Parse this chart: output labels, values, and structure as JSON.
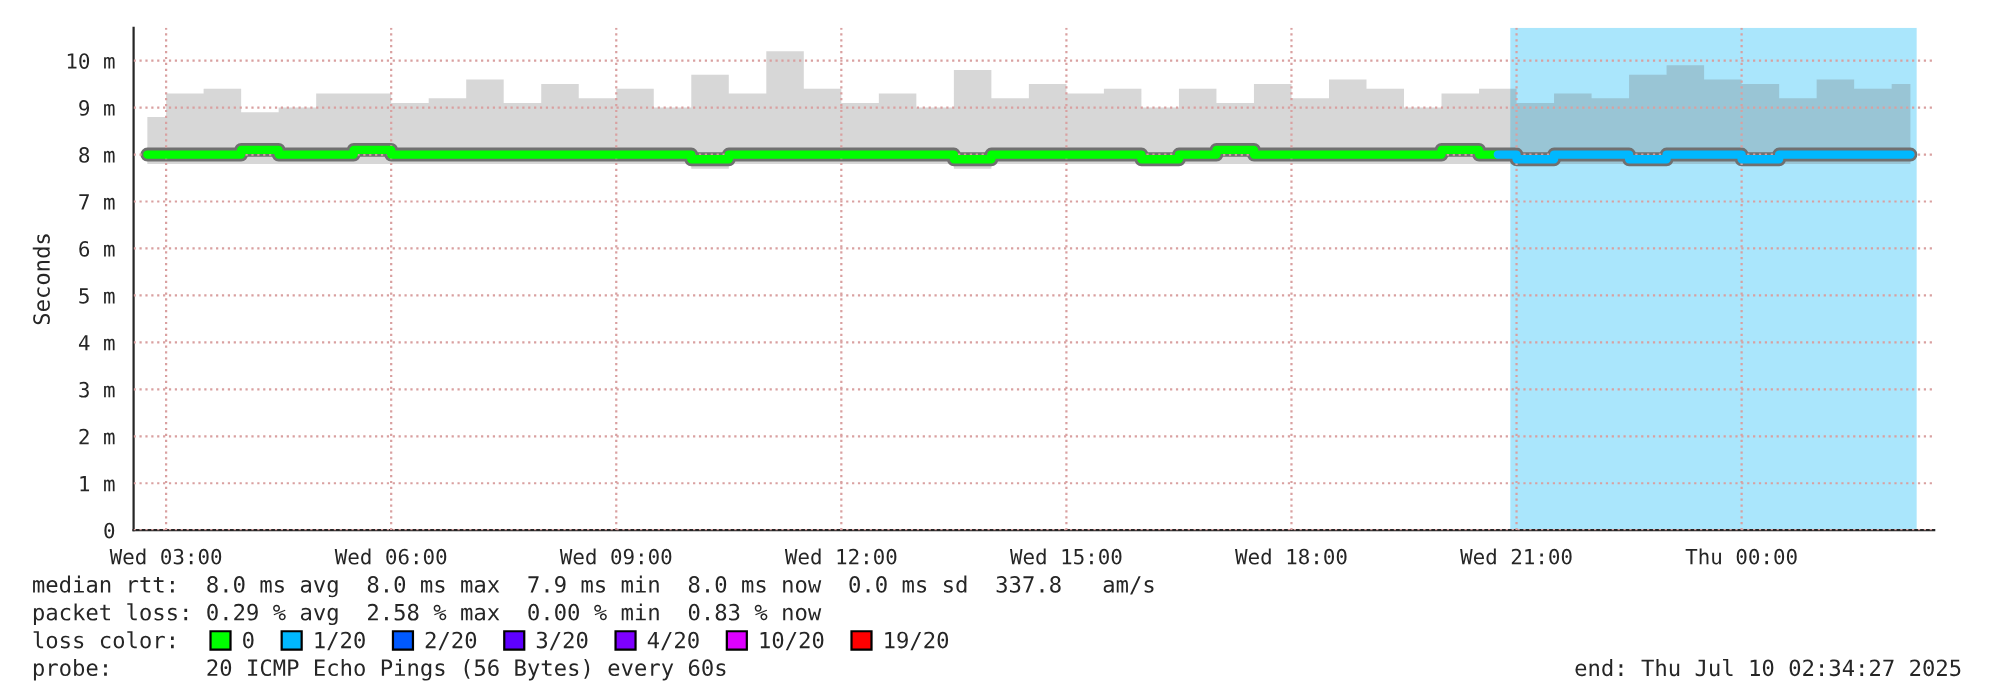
{
  "chart_data": {
    "type": "line",
    "ylabel": "Seconds",
    "legend_title": "loss color:",
    "x": [
      "2025-07-09T02:45",
      "2025-07-09T03:15",
      "2025-07-09T03:45",
      "2025-07-09T04:15",
      "2025-07-09T04:45",
      "2025-07-09T05:15",
      "2025-07-09T05:45",
      "2025-07-09T06:15",
      "2025-07-09T06:45",
      "2025-07-09T07:15",
      "2025-07-09T07:45",
      "2025-07-09T08:15",
      "2025-07-09T08:45",
      "2025-07-09T09:15",
      "2025-07-09T09:45",
      "2025-07-09T10:15",
      "2025-07-09T10:45",
      "2025-07-09T11:15",
      "2025-07-09T11:45",
      "2025-07-09T12:15",
      "2025-07-09T12:45",
      "2025-07-09T13:15",
      "2025-07-09T13:45",
      "2025-07-09T14:15",
      "2025-07-09T14:45",
      "2025-07-09T15:15",
      "2025-07-09T15:45",
      "2025-07-09T16:15",
      "2025-07-09T16:45",
      "2025-07-09T17:15",
      "2025-07-09T17:45",
      "2025-07-09T18:15",
      "2025-07-09T18:45",
      "2025-07-09T19:15",
      "2025-07-09T19:45",
      "2025-07-09T20:15",
      "2025-07-09T20:45",
      "2025-07-09T21:15",
      "2025-07-09T21:45",
      "2025-07-09T22:15",
      "2025-07-09T22:45",
      "2025-07-09T23:15",
      "2025-07-09T23:45",
      "2025-07-10T00:15",
      "2025-07-10T00:45",
      "2025-07-10T01:15",
      "2025-07-10T01:45",
      "2025-07-10T02:15"
    ],
    "series": [
      {
        "color": "#707070",
        "values": [
          8.0,
          8.0,
          8.0,
          8.1,
          8.0,
          8.0,
          8.1,
          8.0,
          8.0,
          8.0,
          8.0,
          8.0,
          8.0,
          8.0,
          8.0,
          7.9,
          8.0,
          8.0,
          8.0,
          8.0,
          8.0,
          8.0,
          7.9,
          8.0,
          8.0,
          8.0,
          8.0,
          7.9,
          8.0,
          8.1,
          8.0,
          8.0,
          8.0,
          8.0,
          8.0,
          8.1,
          8.0,
          7.9,
          8.0,
          8.0,
          7.9,
          8.0,
          8.0,
          7.9,
          8.0,
          8.0,
          8.0,
          8.0
        ],
        "lower": [
          7.8,
          7.8,
          7.8,
          7.8,
          7.8,
          7.8,
          7.8,
          7.8,
          7.8,
          7.8,
          7.8,
          7.8,
          7.8,
          7.8,
          7.8,
          7.7,
          7.8,
          7.8,
          7.8,
          7.8,
          7.8,
          7.8,
          7.7,
          7.8,
          7.8,
          7.8,
          7.8,
          7.8,
          7.8,
          7.8,
          7.8,
          7.8,
          7.8,
          7.8,
          7.8,
          7.8,
          7.8,
          7.8,
          7.8,
          7.8,
          7.8,
          7.8,
          7.8,
          7.8,
          7.8,
          7.8,
          7.8,
          7.8
        ],
        "upper": [
          8.8,
          9.3,
          9.4,
          8.9,
          9.0,
          9.3,
          9.3,
          9.1,
          9.2,
          9.6,
          9.1,
          9.5,
          9.2,
          9.4,
          9.0,
          9.7,
          9.3,
          10.2,
          9.4,
          9.1,
          9.3,
          9.0,
          9.8,
          9.2,
          9.5,
          9.3,
          9.4,
          9.0,
          9.4,
          9.1,
          9.5,
          9.2,
          9.6,
          9.4,
          9.0,
          9.3,
          9.4,
          9.1,
          9.3,
          9.2,
          9.7,
          9.9,
          9.6,
          9.5,
          9.2,
          9.6,
          9.4,
          9.5
        ]
      },
      {
        "name": "0",
        "color": "#00ff00",
        "values": [
          8.0,
          8.0,
          8.0,
          8.1,
          8.0,
          8.0,
          8.1,
          8.0,
          8.0,
          8.0,
          8.0,
          8.0,
          8.0,
          8.0,
          8.0,
          7.9,
          8.0,
          8.0,
          8.0,
          8.0,
          8.0,
          8.0,
          7.9,
          8.0,
          8.0,
          8.0,
          8.0,
          7.9,
          8.0,
          8.1,
          8.0,
          8.0,
          8.0,
          8.0,
          8.0,
          8.1,
          8.0,
          null,
          null,
          null,
          null,
          null,
          null,
          null,
          null,
          null,
          null,
          null
        ]
      },
      {
        "name": "1/20",
        "color": "#00b8ff",
        "values": [
          null,
          null,
          null,
          null,
          null,
          null,
          null,
          null,
          null,
          null,
          null,
          null,
          null,
          null,
          null,
          null,
          null,
          null,
          null,
          null,
          null,
          null,
          null,
          null,
          null,
          null,
          null,
          null,
          null,
          null,
          null,
          null,
          null,
          null,
          null,
          null,
          8.0,
          7.9,
          8.0,
          8.0,
          7.9,
          8.0,
          8.0,
          7.9,
          8.0,
          8.0,
          8.0,
          8.0
        ]
      },
      {
        "name": "2/20",
        "color": "#0059ff",
        "values": [
          null,
          null,
          null,
          null,
          null,
          null,
          null,
          null,
          null,
          null,
          null,
          null,
          null,
          null,
          null,
          null,
          null,
          null,
          null,
          null,
          null,
          null,
          null,
          null,
          null,
          null,
          null,
          null,
          null,
          null,
          null,
          null,
          null,
          null,
          null,
          null,
          null,
          null,
          null,
          null,
          null,
          null,
          null,
          null,
          null,
          null,
          null,
          null
        ]
      },
      {
        "name": "3/20",
        "color": "#5e00ff",
        "values": [
          null,
          null,
          null,
          null,
          null,
          null,
          null,
          null,
          null,
          null,
          null,
          null,
          null,
          null,
          null,
          null,
          null,
          null,
          null,
          null,
          null,
          null,
          null,
          null,
          null,
          null,
          null,
          null,
          null,
          null,
          null,
          null,
          null,
          null,
          null,
          null,
          null,
          null,
          null,
          null,
          null,
          null,
          null,
          null,
          null,
          null,
          null,
          null
        ]
      },
      {
        "name": "4/20",
        "color": "#7e00ff",
        "values": [
          null,
          null,
          null,
          null,
          null,
          null,
          null,
          null,
          null,
          null,
          null,
          null,
          null,
          null,
          null,
          null,
          null,
          null,
          null,
          null,
          null,
          null,
          null,
          null,
          null,
          null,
          null,
          null,
          null,
          null,
          null,
          null,
          null,
          null,
          null,
          null,
          null,
          null,
          null,
          null,
          null,
          null,
          null,
          null,
          null,
          null,
          null,
          null
        ]
      },
      {
        "name": "10/20",
        "color": "#dd00ff",
        "values": [
          null,
          null,
          null,
          null,
          null,
          null,
          null,
          null,
          null,
          null,
          null,
          null,
          null,
          null,
          null,
          null,
          null,
          null,
          null,
          null,
          null,
          null,
          null,
          null,
          null,
          null,
          null,
          null,
          null,
          null,
          null,
          null,
          null,
          null,
          null,
          null,
          null,
          null,
          null,
          null,
          null,
          null,
          null,
          null,
          null,
          null,
          null,
          null
        ]
      },
      {
        "name": "19/20",
        "color": "#ff0000",
        "values": [
          null,
          null,
          null,
          null,
          null,
          null,
          null,
          null,
          null,
          null,
          null,
          null,
          null,
          null,
          null,
          null,
          null,
          null,
          null,
          null,
          null,
          null,
          null,
          null,
          null,
          null,
          null,
          null,
          null,
          null,
          null,
          null,
          null,
          null,
          null,
          null,
          null,
          null,
          null,
          null,
          null,
          null,
          null,
          null,
          null,
          null,
          null,
          null
        ]
      }
    ],
    "bands": [
      {
        "axis": "x",
        "from": "2025-07-09T20:55",
        "to": "2025-07-10T02:20",
        "color": "#aae6fc"
      }
    ],
    "xlim": [
      "2025-07-09T02:34",
      "2025-07-10T02:34"
    ],
    "xticks": [
      {
        "value": "2025-07-09T03:00",
        "label": "Wed 03:00"
      },
      {
        "value": "2025-07-09T06:00",
        "label": "Wed 06:00"
      },
      {
        "value": "2025-07-09T09:00",
        "label": "Wed 09:00"
      },
      {
        "value": "2025-07-09T12:00",
        "label": "Wed 12:00"
      },
      {
        "value": "2025-07-09T15:00",
        "label": "Wed 15:00"
      },
      {
        "value": "2025-07-09T18:00",
        "label": "Wed 18:00"
      },
      {
        "value": "2025-07-09T21:00",
        "label": "Wed 21:00"
      },
      {
        "value": "2025-07-10T00:00",
        "label": "Thu 00:00"
      }
    ],
    "ylim": [
      0,
      10.7
    ],
    "yticks": [
      0,
      {
        "value": 1,
        "label": "1 m"
      },
      {
        "value": 2,
        "label": "2 m"
      },
      {
        "value": 3,
        "label": "3 m"
      },
      {
        "value": 4,
        "label": "4 m"
      },
      {
        "value": 5,
        "label": "5 m"
      },
      {
        "value": 6,
        "label": "6 m"
      },
      {
        "value": 7,
        "label": "7 m"
      },
      {
        "value": 8,
        "label": "8 m"
      },
      {
        "value": 9,
        "label": "9 m"
      },
      {
        "value": 10,
        "label": "10 m"
      }
    ],
    "grid": true,
    "legend": "bottom",
    "marker": "none",
    "line_style": "solid",
    "annotations": [
      "median rtt:  8.0 ms avg  8.0 ms max  7.9 ms min  8.0 ms now  0.0 ms sd  337.8   am/s",
      "packet loss: 0.29 % avg  2.58 % max  0.00 % min  0.83 % now",
      "probe:       20 ICMP Echo Pings (56 Bytes) every 60s",
      "end: Thu Jul 10 02:34:27 2025"
    ]
  }
}
